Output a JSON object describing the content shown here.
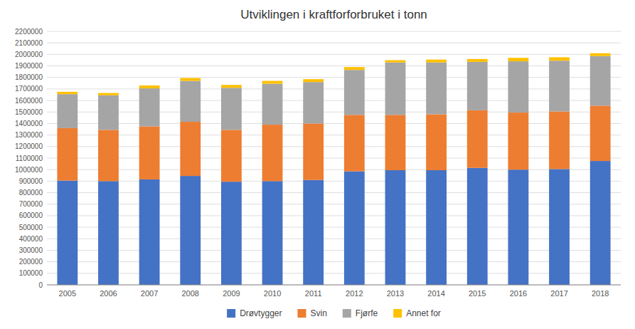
{
  "chart_data": {
    "type": "bar",
    "stacked": true,
    "title": "Utviklingen i kraftforforbruket i tonn",
    "categories": [
      "2005",
      "2006",
      "2007",
      "2008",
      "2009",
      "2010",
      "2011",
      "2012",
      "2013",
      "2014",
      "2015",
      "2016",
      "2017",
      "2018"
    ],
    "series": [
      {
        "name": "Drøvtygger",
        "color": "#4472C4",
        "values": [
          905000,
          900000,
          915000,
          945000,
          895000,
          900000,
          910000,
          985000,
          995000,
          995000,
          1015000,
          1000000,
          1005000,
          1075000
        ]
      },
      {
        "name": "Svin",
        "color": "#ED7D31",
        "values": [
          455000,
          445000,
          460000,
          470000,
          450000,
          490000,
          490000,
          490000,
          480000,
          485000,
          500000,
          495000,
          500000,
          480000
        ]
      },
      {
        "name": "Fjørfe",
        "color": "#A5A5A5",
        "values": [
          295000,
          300000,
          330000,
          355000,
          365000,
          355000,
          360000,
          390000,
          455000,
          450000,
          420000,
          445000,
          440000,
          430000
        ]
      },
      {
        "name": "Annet for",
        "color": "#FFC000",
        "values": [
          20000,
          20000,
          25000,
          25000,
          25000,
          25000,
          25000,
          25000,
          20000,
          25000,
          25000,
          30000,
          30000,
          25000
        ]
      }
    ],
    "ylim": [
      0,
      2200000
    ],
    "yticks": [
      0,
      100000,
      200000,
      300000,
      400000,
      500000,
      600000,
      700000,
      800000,
      900000,
      1000000,
      1100000,
      1200000,
      1300000,
      1400000,
      1500000,
      1600000,
      1700000,
      1800000,
      1900000,
      2000000,
      2100000,
      2200000
    ],
    "grid": true,
    "legend": "bottom"
  }
}
